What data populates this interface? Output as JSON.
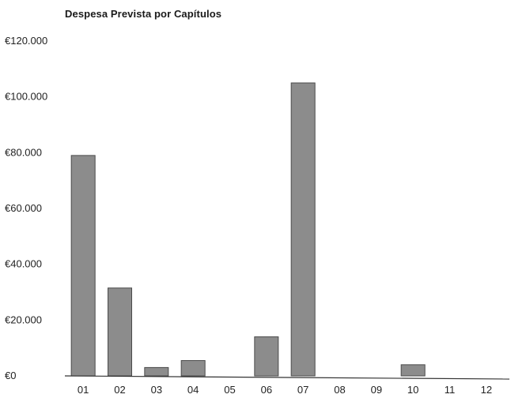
{
  "chart_data": {
    "type": "bar",
    "title": "Despesa Prevista por Capítulos",
    "xlabel": "",
    "ylabel": "",
    "categories": [
      "01",
      "02",
      "03",
      "04",
      "05",
      "06",
      "07",
      "08",
      "09",
      "10",
      "11",
      "12"
    ],
    "values": [
      79000,
      31500,
      3000,
      5500,
      0,
      14000,
      105000,
      0,
      0,
      4000,
      0,
      0
    ],
    "ylim": [
      0,
      120000
    ],
    "yticks": [
      0,
      20000,
      40000,
      60000,
      80000,
      100000,
      120000
    ],
    "ytick_labels": [
      "€0",
      "€20.000",
      "€40.000",
      "€60.000",
      "€80.000",
      "€100.000",
      "€120.000"
    ],
    "grid": false,
    "legend": "none",
    "colors": {
      "bar": "#8c8c8c",
      "bar_edge": "#4a4a4a",
      "axis": "#333333"
    }
  }
}
